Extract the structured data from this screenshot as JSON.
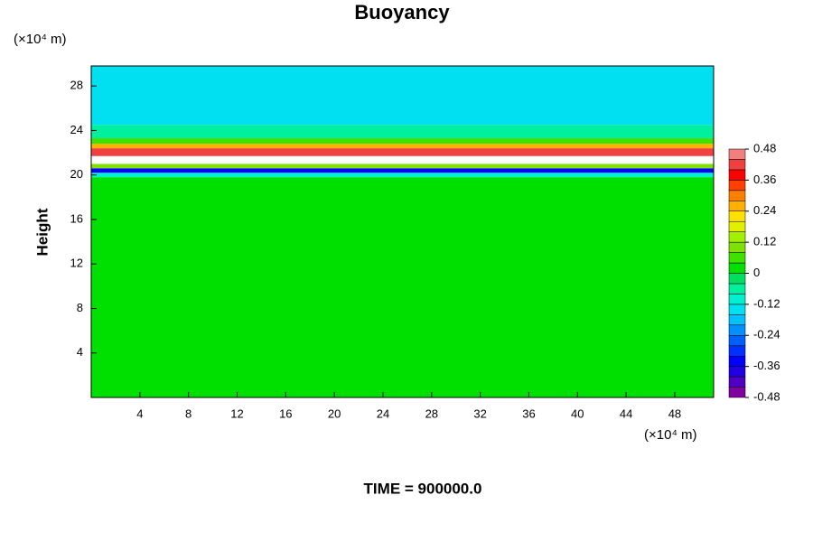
{
  "chart_data": {
    "type": "contour",
    "title": "Buoyancy",
    "y_label": "Height",
    "y_unit": "(×10⁴ m)",
    "x_unit": "(×10⁴ m)",
    "time_label": "TIME = 900000.0",
    "xlim": [
      0,
      51.2
    ],
    "ylim": [
      0,
      29.8
    ],
    "xticks": [
      4,
      8,
      12,
      16,
      20,
      24,
      28,
      32,
      36,
      40,
      44,
      48
    ],
    "yticks": [
      4,
      8,
      12,
      16,
      20,
      24,
      28
    ],
    "height_edges": [
      0,
      19.8,
      20.2,
      20.6,
      21.0,
      21.7,
      22.4,
      22.8,
      23.3,
      24.5,
      29.8
    ],
    "values": [
      0.01,
      -0.1,
      -0.36,
      0.1,
      0.55,
      0.4,
      0.24,
      0.08,
      -0.06,
      -0.13
    ],
    "colorbar": {
      "clim": [
        -0.48,
        0.48
      ],
      "ticks": [
        0.48,
        0.36,
        0.24,
        0.12,
        0,
        -0.12,
        -0.24,
        -0.36,
        -0.48
      ],
      "over_color": "#ffffff",
      "colors": [
        "#8000a0",
        "#5000c0",
        "#2000e0",
        "#0000ff",
        "#0030ff",
        "#0060ff",
        "#0090ff",
        "#00c0ff",
        "#00e0f0",
        "#00f0d0",
        "#00f0a0",
        "#00e060",
        "#00e000",
        "#40e000",
        "#80e000",
        "#a0f000",
        "#e0f000",
        "#ffe000",
        "#ffb000",
        "#ff8000",
        "#ff4000",
        "#ff0000",
        "#f04040",
        "#f08080"
      ]
    }
  }
}
